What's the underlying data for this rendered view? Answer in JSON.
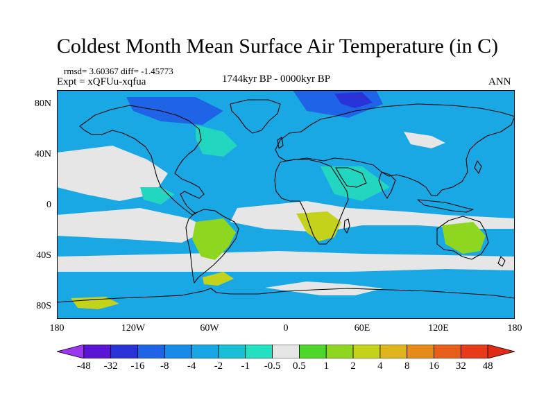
{
  "title": "Coldest Month Mean Surface Air Temperature (in C)",
  "stats_line": "rmsd= 3.60367 diff= -1.45773",
  "experiment_line": "Expt = xQFUu-xqfua",
  "period": "1744kyr BP - 0000kyr BP",
  "season": "ANN",
  "lat_labels": [
    "80N",
    "40N",
    "0",
    "40S",
    "80S"
  ],
  "lat_values": [
    80,
    40,
    0,
    -40,
    -80
  ],
  "lon_labels": [
    "180",
    "120W",
    "60W",
    "0",
    "60E",
    "120E",
    "180"
  ],
  "lon_values": [
    -180,
    -120,
    -60,
    0,
    60,
    120,
    180
  ],
  "colorbar": {
    "labels": [
      "-48",
      "-32",
      "-16",
      "-8",
      "-4",
      "-2",
      "-1",
      "-0.5",
      "0.5",
      "1",
      "2",
      "4",
      "8",
      "16",
      "32",
      "48"
    ],
    "colors": [
      "#9c37f0",
      "#5a14d6",
      "#2a33d8",
      "#1f63e6",
      "#1a8ae8",
      "#19a6e6",
      "#18c0d6",
      "#22e0c0",
      "#e6e6e6",
      "#4fd62b",
      "#8fd620",
      "#c5d21c",
      "#e0b41c",
      "#e68a1a",
      "#e6601a",
      "#e63a18",
      "#e02c14"
    ]
  },
  "map_palette": {
    "ocean": "#1aa8e4",
    "teal": "#22d6c0",
    "neutral": "#e6e6e6",
    "green": "#8fd620",
    "yellow": "#c5d21c",
    "blue": "#1f63e6",
    "darkblue": "#2a33d8"
  }
}
